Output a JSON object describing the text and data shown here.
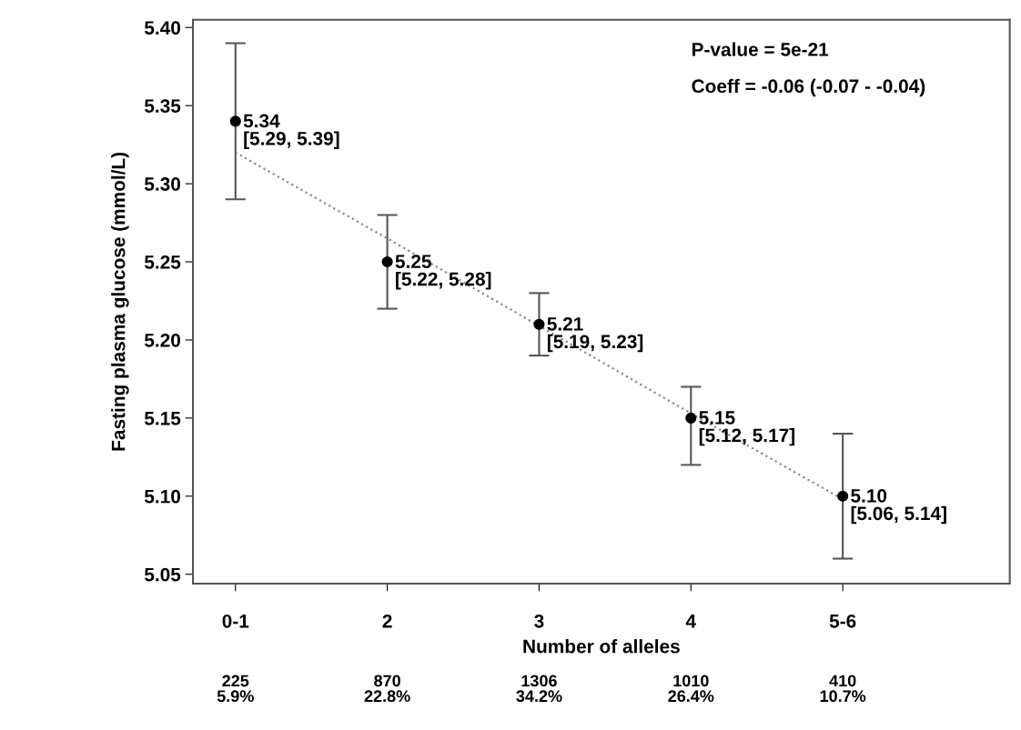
{
  "chart_data": {
    "type": "scatter",
    "xlabel": "Number of alleles",
    "ylabel": "Fasting plasma glucose (mmol/L)",
    "categories": [
      "0-1",
      "2",
      "3",
      "4",
      "5-6"
    ],
    "ylim": [
      5.044,
      5.405
    ],
    "yticks": [
      {
        "value": 5.05,
        "label": "5.05"
      },
      {
        "value": 5.1,
        "label": "5.10"
      },
      {
        "value": 5.15,
        "label": "5.15"
      },
      {
        "value": 5.2,
        "label": "5.20"
      },
      {
        "value": 5.25,
        "label": "5.25"
      },
      {
        "value": 5.3,
        "label": "5.30"
      },
      {
        "value": 5.35,
        "label": "5.35"
      },
      {
        "value": 5.4,
        "label": "5.40"
      }
    ],
    "marker": "circle",
    "series": [
      {
        "color": "#000000",
        "values": [
          5.34,
          5.25,
          5.21,
          5.15,
          5.1
        ],
        "errors": [
          [
            5.29,
            5.39
          ],
          [
            5.22,
            5.28
          ],
          [
            5.19,
            5.23
          ],
          [
            5.12,
            5.17
          ],
          [
            5.06,
            5.14
          ]
        ],
        "value_labels": [
          "5.34\n[5.29, 5.39]",
          "5.25\n[5.22, 5.28]",
          "5.21\n[5.19, 5.23]",
          "5.15\n[5.12, 5.17]",
          "5.10\n[5.06, 5.14]"
        ]
      },
      {
        "type": "line",
        "color": "#888888",
        "line_style": "dotted",
        "marker": "none",
        "values": [
          5.32,
          5.265,
          5.209,
          5.153,
          5.098
        ]
      }
    ],
    "annotations": [
      "P-value = 5e-21",
      "Coeff = -0.06 (-0.07 - -0.04)",
      "225\n5.9%",
      "870\n22.8%",
      "1306\n34.2%",
      "1010\n26.4%",
      "410\n10.7%"
    ]
  }
}
